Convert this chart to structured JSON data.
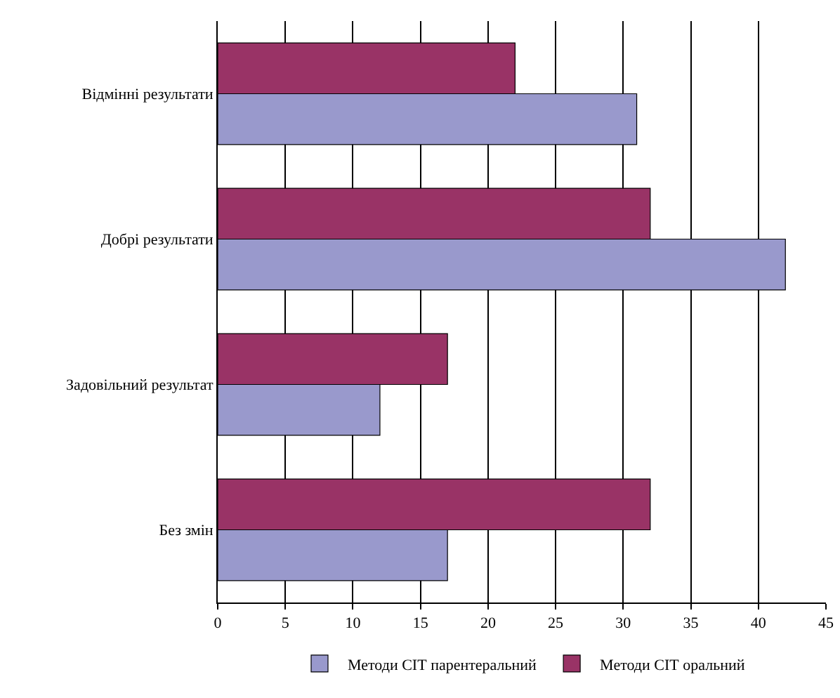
{
  "chart_data": {
    "type": "bar",
    "orientation": "horizontal",
    "categories": [
      "Відмінні результати",
      "Добрі результати",
      "Задовільний результат",
      "Без змін"
    ],
    "series": [
      {
        "name": "Методи СІТ парентеральний",
        "color": "#9999cc",
        "values": [
          31,
          42,
          12,
          17
        ]
      },
      {
        "name": "Методи СІТ оральний",
        "color": "#993366",
        "values": [
          22,
          32,
          17,
          32
        ]
      }
    ],
    "xlim": [
      0,
      45
    ],
    "xticks": [
      0,
      5,
      10,
      15,
      20,
      25,
      30,
      35,
      40,
      45
    ],
    "grid": "x",
    "legend": "bottom"
  }
}
